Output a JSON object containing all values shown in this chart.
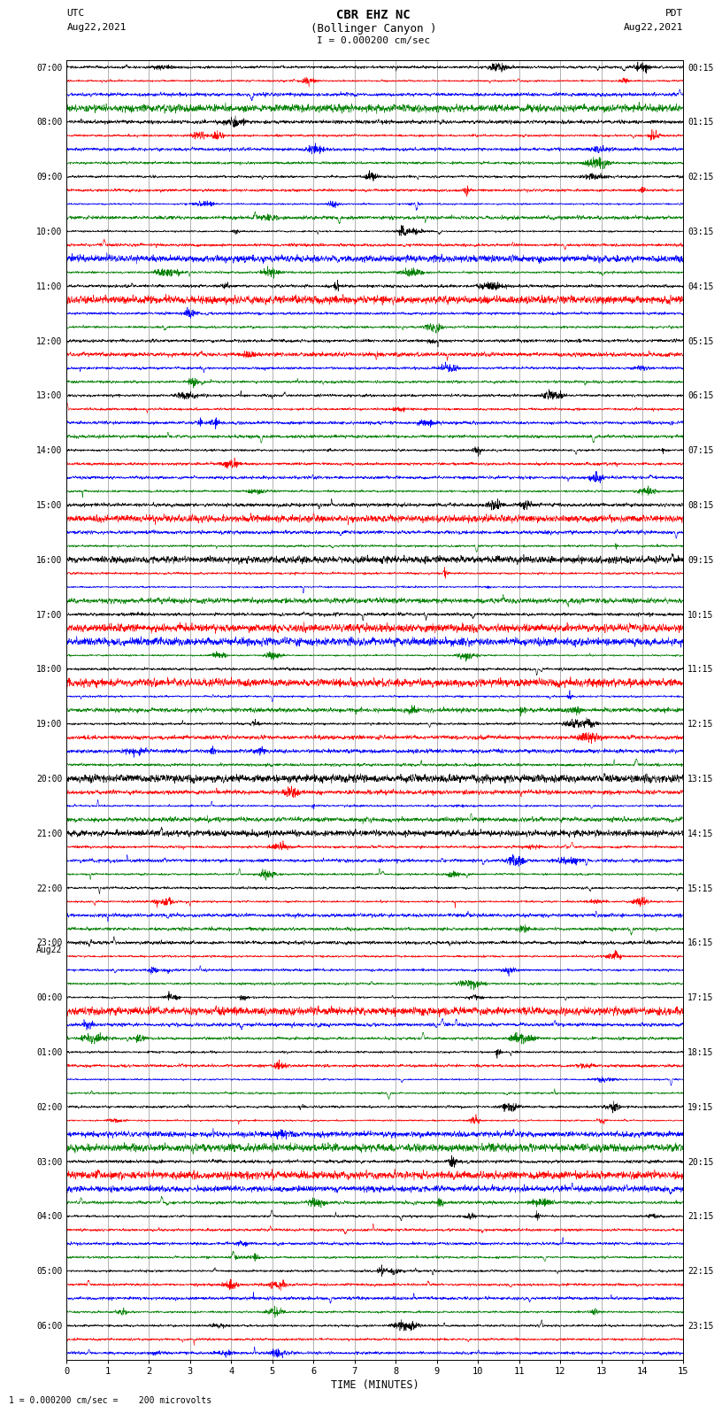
{
  "title_line1": "CBR EHZ NC",
  "title_line2": "(Bollinger Canyon )",
  "title_line3": "I = 0.000200 cm/sec",
  "label_left_header": "UTC",
  "label_left_date": "Aug22,2021",
  "label_right_header": "PDT",
  "label_right_date": "Aug22,2021",
  "xlabel": "TIME (MINUTES)",
  "footer": "1 = 0.000200 cm/sec =    200 microvolts",
  "x_min": 0,
  "x_max": 15,
  "x_ticks": [
    0,
    1,
    2,
    3,
    4,
    5,
    6,
    7,
    8,
    9,
    10,
    11,
    12,
    13,
    14,
    15
  ],
  "left_times": [
    "07:00",
    "",
    "",
    "",
    "08:00",
    "",
    "",
    "",
    "09:00",
    "",
    "",
    "",
    "10:00",
    "",
    "",
    "",
    "11:00",
    "",
    "",
    "",
    "12:00",
    "",
    "",
    "",
    "13:00",
    "",
    "",
    "",
    "14:00",
    "",
    "",
    "",
    "15:00",
    "",
    "",
    "",
    "16:00",
    "",
    "",
    "",
    "17:00",
    "",
    "",
    "",
    "18:00",
    "",
    "",
    "",
    "19:00",
    "",
    "",
    "",
    "20:00",
    "",
    "",
    "",
    "21:00",
    "",
    "",
    "",
    "22:00",
    "",
    "",
    "",
    "23:00",
    "Aug22",
    "",
    "",
    "00:00",
    "",
    "",
    "",
    "01:00",
    "",
    "",
    "",
    "02:00",
    "",
    "",
    "",
    "03:00",
    "",
    "",
    "",
    "04:00",
    "",
    "",
    "",
    "05:00",
    "",
    "",
    "",
    "06:00",
    "",
    ""
  ],
  "right_times": [
    "00:15",
    "",
    "",
    "",
    "01:15",
    "",
    "",
    "",
    "02:15",
    "",
    "",
    "",
    "03:15",
    "",
    "",
    "",
    "04:15",
    "",
    "",
    "",
    "05:15",
    "",
    "",
    "",
    "06:15",
    "",
    "",
    "",
    "07:15",
    "",
    "",
    "",
    "08:15",
    "",
    "",
    "",
    "09:15",
    "",
    "",
    "",
    "10:15",
    "",
    "",
    "",
    "11:15",
    "",
    "",
    "",
    "12:15",
    "",
    "",
    "",
    "13:15",
    "",
    "",
    "",
    "14:15",
    "",
    "",
    "",
    "15:15",
    "",
    "",
    "",
    "16:15",
    "",
    "",
    "",
    "17:15",
    "",
    "",
    "",
    "18:15",
    "",
    "",
    "",
    "19:15",
    "",
    "",
    "",
    "20:15",
    "",
    "",
    "",
    "21:15",
    "",
    "",
    "",
    "22:15",
    "",
    "",
    "",
    "23:15",
    "",
    ""
  ],
  "trace_colors": [
    "black",
    "red",
    "blue",
    "green"
  ],
  "background_color": "#ffffff",
  "grid_color": "#888888",
  "fig_width": 8.5,
  "fig_height": 16.13
}
